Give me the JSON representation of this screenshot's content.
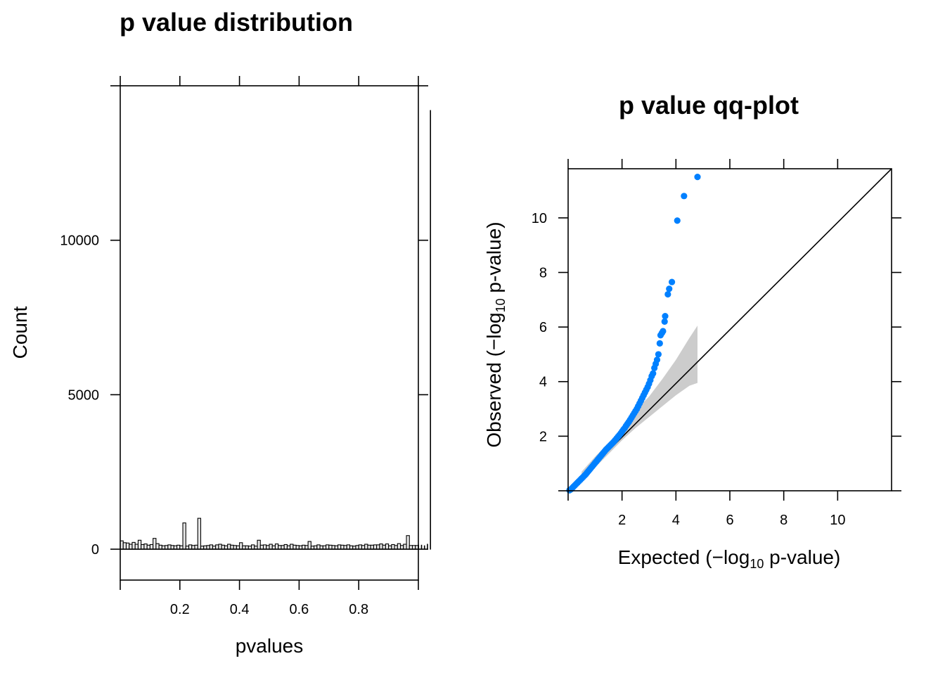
{
  "chart_data": [
    {
      "type": "bar",
      "title": "p value distribution",
      "xlabel": "pvalues",
      "ylabel": "Count",
      "xlim": [
        0,
        1
      ],
      "ylim": [
        -1000,
        15000
      ],
      "xticks": [
        0.2,
        0.4,
        0.6,
        0.8
      ],
      "xtick_labels": [
        "0.2",
        "0.4",
        "0.6",
        "0.8"
      ],
      "yticks": [
        0,
        5000,
        10000
      ],
      "ytick_labels": [
        "0",
        "5000",
        "10000"
      ],
      "bin_width": 0.01,
      "bar_color": "#e6e6e6",
      "values": [
        270,
        210,
        200,
        160,
        220,
        160,
        290,
        150,
        170,
        130,
        150,
        350,
        180,
        130,
        110,
        120,
        140,
        120,
        110,
        130,
        110,
        850,
        100,
        140,
        120,
        130,
        1000,
        100,
        110,
        120,
        140,
        100,
        140,
        160,
        130,
        110,
        160,
        130,
        120,
        110,
        210,
        110,
        110,
        100,
        140,
        100,
        290,
        130,
        140,
        120,
        160,
        110,
        170,
        120,
        120,
        150,
        110,
        160,
        130,
        120,
        110,
        130,
        120,
        250,
        100,
        110,
        140,
        110,
        110,
        140,
        130,
        120,
        110,
        140,
        130,
        120,
        140,
        110,
        100,
        120,
        140,
        120,
        160,
        130,
        130,
        140,
        140,
        170,
        130,
        170,
        110,
        150,
        120,
        180,
        120,
        160,
        440,
        120,
        120,
        120,
        130,
        130,
        110,
        160,
        14200
      ]
    },
    {
      "type": "scatter",
      "title": "p value qq-plot",
      "xlabel_parts": {
        "pre": "Expected (",
        "minus": "−",
        "log": "log",
        "sub": "10",
        "post": " p-value)"
      },
      "ylabel_parts": {
        "pre": "Observed (",
        "minus": "−",
        "log": "log",
        "sub": "10",
        "post": " p-value)"
      },
      "xlim": [
        0,
        12
      ],
      "ylim": [
        0,
        11.8
      ],
      "xticks": [
        2,
        4,
        6,
        8,
        10
      ],
      "xtick_labels": [
        "2",
        "4",
        "6",
        "8",
        "10"
      ],
      "yticks": [
        2,
        4,
        6,
        8,
        10
      ],
      "ytick_labels": [
        "2",
        "4",
        "6",
        "8",
        "10"
      ],
      "point_color": "#0080ff",
      "band_color": "#cccccc",
      "reference_line": [
        [
          0,
          0
        ],
        [
          12,
          11.8
        ]
      ],
      "confidence_band": {
        "x": [
          0.5,
          1.0,
          1.5,
          2.0,
          2.5,
          3.0,
          3.5,
          4.0,
          4.5,
          4.8
        ],
        "upper": [
          0.7,
          1.25,
          1.75,
          2.3,
          2.95,
          3.45,
          4.1,
          4.8,
          5.6,
          6.05
        ],
        "lower": [
          0.4,
          0.85,
          1.35,
          1.85,
          2.3,
          2.7,
          3.1,
          3.5,
          3.85,
          3.95
        ]
      },
      "points_x": [
        0.05,
        0.1,
        0.15,
        0.2,
        0.25,
        0.3,
        0.35,
        0.4,
        0.45,
        0.5,
        0.55,
        0.6,
        0.65,
        0.7,
        0.75,
        0.8,
        0.85,
        0.9,
        0.95,
        1.0,
        1.05,
        1.1,
        1.15,
        1.2,
        1.25,
        1.3,
        1.35,
        1.4,
        1.45,
        1.5,
        1.55,
        1.6,
        1.65,
        1.7,
        1.75,
        1.8,
        1.85,
        1.9,
        1.95,
        2.0,
        2.05,
        2.1,
        2.15,
        2.2,
        2.25,
        2.3,
        2.35,
        2.4,
        2.45,
        2.5,
        2.55,
        2.6,
        2.65,
        2.7,
        2.75,
        2.8,
        2.85,
        2.9,
        2.95,
        3.0,
        3.05,
        3.1,
        3.15,
        3.2,
        3.25,
        3.3,
        3.35,
        3.4,
        3.43,
        3.48,
        3.52,
        3.58,
        3.6,
        3.7,
        3.75,
        3.85,
        4.05,
        4.3,
        4.8
      ],
      "points_y": [
        0.02,
        0.05,
        0.1,
        0.15,
        0.2,
        0.25,
        0.3,
        0.35,
        0.4,
        0.45,
        0.5,
        0.55,
        0.6,
        0.66,
        0.72,
        0.78,
        0.84,
        0.9,
        0.96,
        1.02,
        1.08,
        1.14,
        1.2,
        1.26,
        1.32,
        1.38,
        1.44,
        1.5,
        1.55,
        1.6,
        1.65,
        1.7,
        1.75,
        1.8,
        1.86,
        1.92,
        1.98,
        2.04,
        2.1,
        2.17,
        2.24,
        2.3,
        2.38,
        2.45,
        2.52,
        2.6,
        2.68,
        2.76,
        2.84,
        2.92,
        3.0,
        3.1,
        3.2,
        3.3,
        3.4,
        3.5,
        3.6,
        3.7,
        3.8,
        3.92,
        4.05,
        4.2,
        4.3,
        4.5,
        4.65,
        4.8,
        5.0,
        5.4,
        5.7,
        5.78,
        5.85,
        6.2,
        6.4,
        7.2,
        7.4,
        7.65,
        9.9,
        10.8,
        11.5
      ]
    }
  ]
}
